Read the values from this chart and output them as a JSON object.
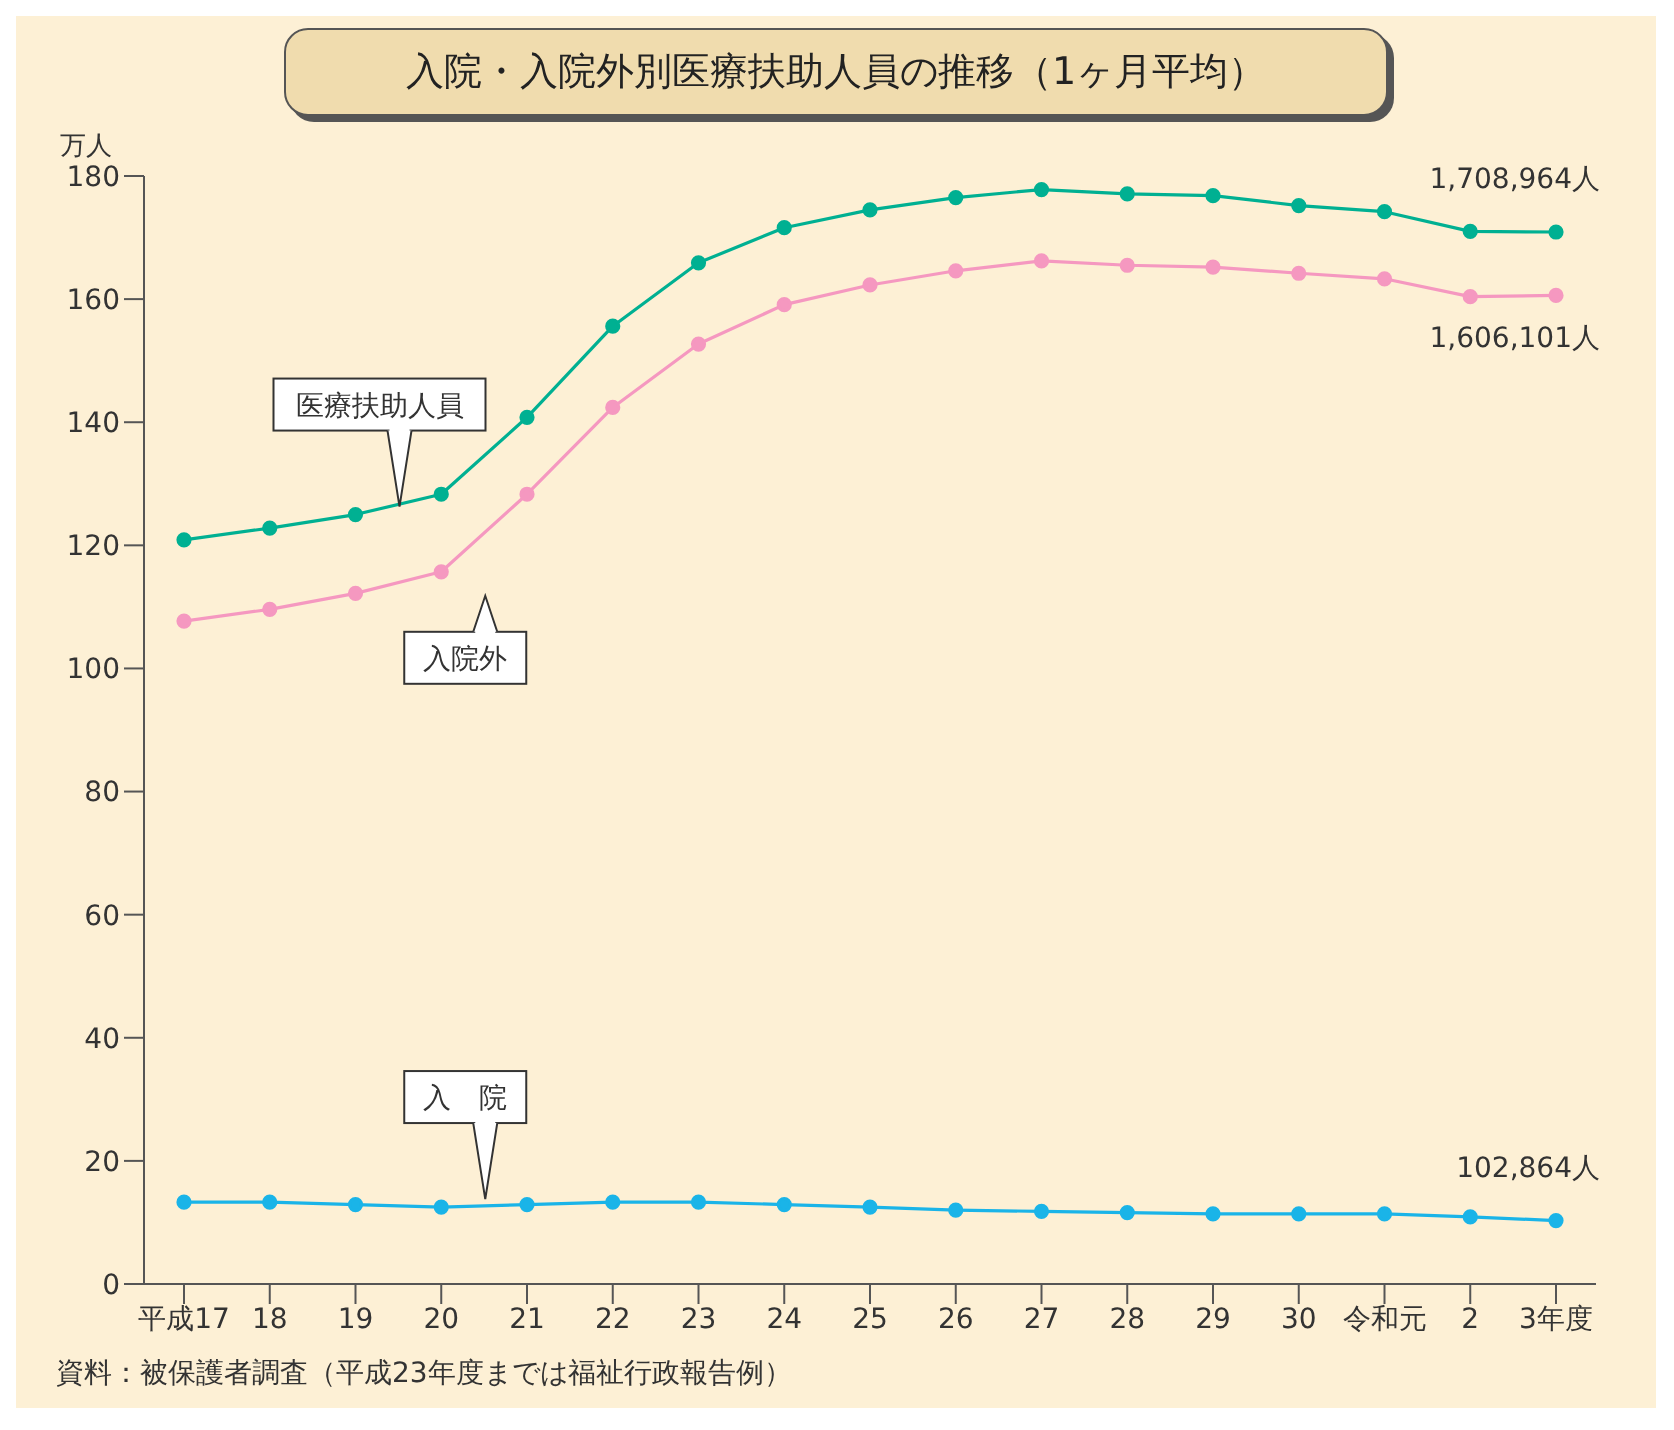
{
  "chart_data": {
    "type": "line",
    "title": "入院・入院外別医療扶助人員の推移（1ヶ月平均）",
    "ylabel": "万人",
    "categories": [
      "平成17",
      "18",
      "19",
      "20",
      "21",
      "22",
      "23",
      "24",
      "25",
      "26",
      "27",
      "28",
      "29",
      "30",
      "令和元",
      "2",
      "3年度"
    ],
    "series": [
      {
        "name": "医療扶助人員",
        "color": "#00b092",
        "values": [
          120.9,
          122.8,
          125.0,
          128.3,
          140.8,
          155.6,
          165.9,
          171.6,
          174.5,
          176.5,
          177.8,
          177.1,
          176.8,
          175.2,
          174.2,
          171.0,
          170.9
        ]
      },
      {
        "name": "入院外",
        "color": "#f598c0",
        "values": [
          107.7,
          109.6,
          112.2,
          115.7,
          128.3,
          142.4,
          152.7,
          159.1,
          162.3,
          164.6,
          166.2,
          165.5,
          165.2,
          164.2,
          163.3,
          160.4,
          160.6
        ]
      },
      {
        "name": "入　院",
        "color": "#1ab4e8",
        "values": [
          13.3,
          13.3,
          12.9,
          12.5,
          12.9,
          13.3,
          13.3,
          12.9,
          12.5,
          12.0,
          11.8,
          11.6,
          11.4,
          11.4,
          11.4,
          10.9,
          10.3
        ]
      }
    ],
    "ylim": [
      0,
      180
    ],
    "yticks": [
      0,
      20,
      40,
      60,
      80,
      100,
      120,
      140,
      160,
      180
    ],
    "grid": false,
    "legend": false,
    "marker": "circle",
    "line_style": "solid",
    "annotations": [
      {
        "text": "1,708,964人",
        "x": "3年度",
        "y": 170.9
      },
      {
        "text": "1,606,101人",
        "x": "3年度",
        "y": 160.6
      },
      {
        "text": "102,864人",
        "x": "3年度",
        "y": 10.3
      },
      "資料：被保護者調査（平成23年度までは福祉行政報告例）"
    ]
  }
}
